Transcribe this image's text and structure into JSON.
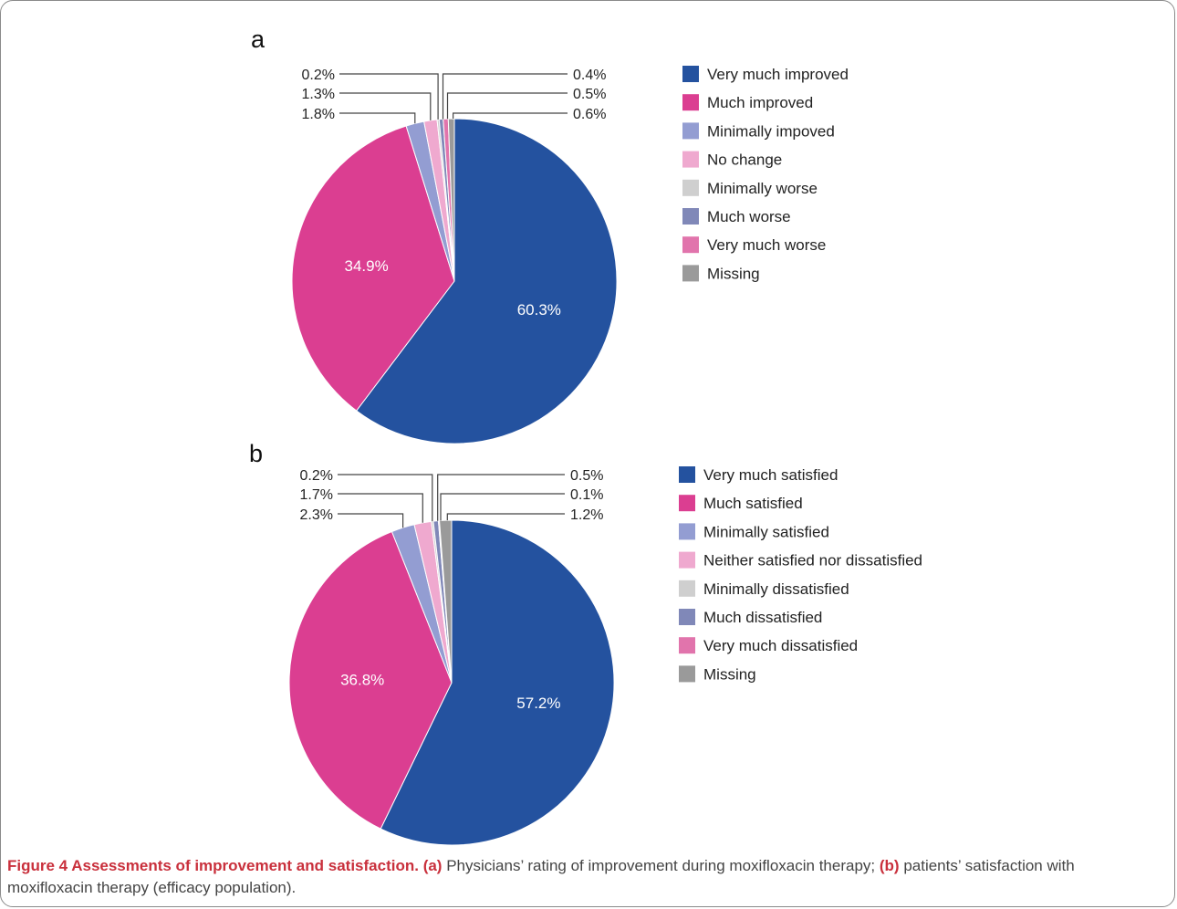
{
  "chart_data": [
    {
      "type": "pie",
      "panel": "a",
      "slices": [
        {
          "label": "Very much improved",
          "value": 60.3,
          "value_label": "60.3%",
          "color": "#24529f"
        },
        {
          "label": "Much improved",
          "value": 34.9,
          "value_label": "34.9%",
          "color": "#db3e91"
        },
        {
          "label": "Minimally impoved",
          "value": 1.8,
          "value_label": "1.8%",
          "color": "#939dd2"
        },
        {
          "label": "No change",
          "value": 1.3,
          "value_label": "1.3%",
          "color": "#efa9cf"
        },
        {
          "label": "Minimally worse",
          "value": 0.2,
          "value_label": "0.2%",
          "color": "#cfcfcf"
        },
        {
          "label": "Much worse",
          "value": 0.4,
          "value_label": "0.4%",
          "color": "#8088b8"
        },
        {
          "label": "Very much worse",
          "value": 0.5,
          "value_label": "0.5%",
          "color": "#e174ac"
        },
        {
          "label": "Missing",
          "value": 0.6,
          "value_label": "0.6%",
          "color": "#9a9a9a"
        }
      ]
    },
    {
      "type": "pie",
      "panel": "b",
      "slices": [
        {
          "label": "Very much satisfied",
          "value": 57.2,
          "value_label": "57.2%",
          "color": "#24529f"
        },
        {
          "label": "Much satisfied",
          "value": 36.8,
          "value_label": "36.8%",
          "color": "#db3e91"
        },
        {
          "label": "Minimally satisfied",
          "value": 2.3,
          "value_label": "2.3%",
          "color": "#939dd2"
        },
        {
          "label": "Neither satisfied nor dissatisfied",
          "value": 1.7,
          "value_label": "1.7%",
          "color": "#efa9cf"
        },
        {
          "label": "Minimally dissatisfied",
          "value": 0.2,
          "value_label": "0.2%",
          "color": "#cfcfcf"
        },
        {
          "label": "Much dissatisfied",
          "value": 0.5,
          "value_label": "0.5%",
          "color": "#8088b8"
        },
        {
          "label": "Very much dissatisfied",
          "value": 0.1,
          "value_label": "0.1%",
          "color": "#e174ac"
        },
        {
          "label": "Missing",
          "value": 1.2,
          "value_label": "1.2%",
          "color": "#9a9a9a"
        }
      ]
    }
  ],
  "caption": {
    "title": "Figure 4 Assessments of improvement and satisfaction.",
    "part_a_marker": "(a)",
    "part_a_text": "Physicians’ rating of improvement during moxifloxacin therapy;",
    "part_b_marker": "(b)",
    "part_b_text": "patients’ satisfaction with moxifloxacin therapy (efficacy population)."
  }
}
